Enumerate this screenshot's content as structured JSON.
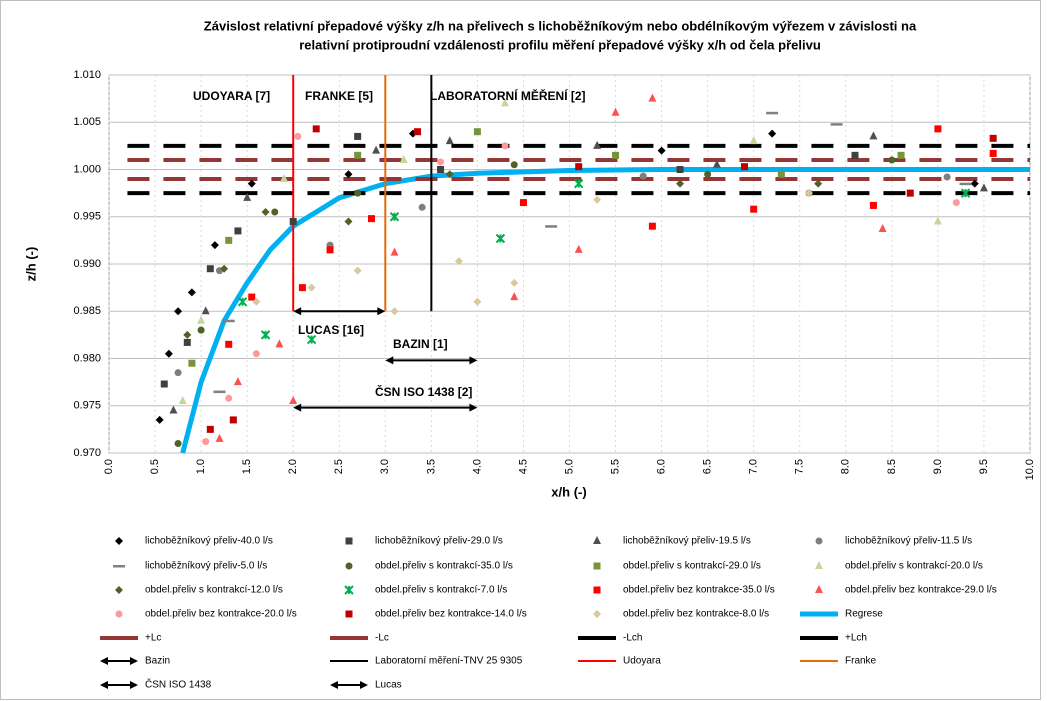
{
  "chart_data": {
    "type": "scatter",
    "title": [
      "Závislost relativní přepadové výšky z/h na přelivech s lichoběžníkovým nebo obdélníkovým výřezem  v závislosti na",
      "relativní protiproudní vzdálenosti profilu měření přepadové výšky x/h od čela přelivu"
    ],
    "x_label": "x/h (-)",
    "y_label": "z/h (-)",
    "xlim": [
      0,
      10
    ],
    "ylim": [
      0.97,
      1.01
    ],
    "grid": true,
    "legend": "bottom",
    "xticks": [
      {
        "value": 0,
        "label": "0.0"
      },
      {
        "value": 0.5,
        "label": "0.5"
      },
      {
        "value": 1,
        "label": "1.0"
      },
      {
        "value": 1.5,
        "label": "1.5"
      },
      {
        "value": 2,
        "label": "2.0"
      },
      {
        "value": 2.5,
        "label": "2.5"
      },
      {
        "value": 3,
        "label": "3.0"
      },
      {
        "value": 3.5,
        "label": "3.5"
      },
      {
        "value": 4,
        "label": "4.0"
      },
      {
        "value": 4.5,
        "label": "4.5"
      },
      {
        "value": 5,
        "label": "5.0"
      },
      {
        "value": 5.5,
        "label": "5.5"
      },
      {
        "value": 6,
        "label": "6.0"
      },
      {
        "value": 6.5,
        "label": "6.5"
      },
      {
        "value": 7,
        "label": "7.0"
      },
      {
        "value": 7.5,
        "label": "7.5"
      },
      {
        "value": 8,
        "label": "8.0"
      },
      {
        "value": 8.5,
        "label": "8.5"
      },
      {
        "value": 9,
        "label": "9.0"
      },
      {
        "value": 9.5,
        "label": "9.5"
      },
      {
        "value": 10,
        "label": "10.0"
      }
    ],
    "yticks": [
      {
        "value": 0.97,
        "label": "0.970"
      },
      {
        "value": 0.975,
        "label": "0.975"
      },
      {
        "value": 0.98,
        "label": "0.980"
      },
      {
        "value": 0.985,
        "label": "0.985"
      },
      {
        "value": 0.99,
        "label": "0.990"
      },
      {
        "value": 0.995,
        "label": "0.995"
      },
      {
        "value": 1,
        "label": "1.000"
      },
      {
        "value": 1.005,
        "label": "1.005"
      },
      {
        "value": 1.01,
        "label": "1.010"
      }
    ],
    "annotations": [
      "UDOYARA [7]",
      "FRANKE [5]",
      "LABORATORNÍ MĚŘENÍ  [2]",
      "LUCAS [16]",
      "BAZIN [1]",
      "ČSN ISO 1438 [2]"
    ],
    "series": [
      {
        "name": "lichoběžníkový přeliv-40.0 l/s",
        "marker": "diamond",
        "color": "#000000",
        "x": [
          0.55,
          0.65,
          0.75,
          0.9,
          1.15,
          1.55,
          2.6,
          3.3,
          6.0,
          7.2,
          9.4
        ],
        "values": [
          0.9735,
          0.9805,
          0.985,
          0.987,
          0.992,
          0.9985,
          0.9995,
          1.0038,
          1.002,
          1.0038,
          0.9985
        ]
      },
      {
        "name": "lichoběžníkový přeliv-29.0 l/s",
        "marker": "square",
        "color": "#404040",
        "x": [
          0.6,
          0.85,
          1.1,
          1.4,
          2.0,
          2.7,
          3.6,
          6.2,
          8.1
        ],
        "values": [
          0.9773,
          0.9817,
          0.9895,
          0.9935,
          0.9945,
          1.0035,
          1.0,
          1.0,
          1.0015
        ]
      },
      {
        "name": "lichoběžníkový přeliv-19.5 l/s",
        "marker": "triangle",
        "color": "#505050",
        "x": [
          0.7,
          1.05,
          1.5,
          2.9,
          3.7,
          5.3,
          6.6,
          8.3,
          9.5
        ],
        "values": [
          0.9745,
          0.985,
          0.997,
          1.002,
          1.003,
          1.0025,
          1.0005,
          1.0035,
          0.998
        ]
      },
      {
        "name": "lichoběžníkový přeliv-11.5 l/s",
        "marker": "circle",
        "color": "#7f7f7f",
        "x": [
          0.75,
          1.2,
          2.4,
          3.4,
          5.8,
          7.6,
          9.1
        ],
        "values": [
          0.9785,
          0.9893,
          0.992,
          0.996,
          0.9993,
          0.9975,
          0.9992
        ]
      },
      {
        "name": "lichoběžníkový přeliv-5.0 l/s",
        "marker": "dash",
        "color": "#808080",
        "x": [
          1.2,
          1.3,
          4.8,
          7.2,
          7.9,
          9.3
        ],
        "values": [
          0.9765,
          0.984,
          0.994,
          1.006,
          1.0048,
          0.9985
        ]
      },
      {
        "name": "obdel.přeliv s kontrakcí-35.0 l/s",
        "marker": "circle",
        "color": "#4f6228",
        "x": [
          0.75,
          1.0,
          1.8,
          2.7,
          4.4,
          6.5,
          8.5
        ],
        "values": [
          0.971,
          0.983,
          0.9955,
          0.9975,
          1.0005,
          0.9995,
          1.001
        ]
      },
      {
        "name": "obdel.přeliv s kontrakcí-29.0 l/s",
        "marker": "square",
        "color": "#77933c",
        "x": [
          0.9,
          1.3,
          2.7,
          4.0,
          5.5,
          7.3,
          8.6
        ],
        "values": [
          0.9795,
          0.9925,
          1.0015,
          1.004,
          1.0015,
          0.9995,
          1.0015
        ]
      },
      {
        "name": "obdel.přeliv s kontrakcí-20.0 l/s",
        "marker": "triangle",
        "color": "#c3d69b",
        "x": [
          0.8,
          1.0,
          1.9,
          3.2,
          4.3,
          7.0,
          9.0
        ],
        "values": [
          0.9755,
          0.984,
          0.999,
          1.001,
          1.007,
          1.003,
          0.9945
        ]
      },
      {
        "name": "obdel.přeliv s kontrakcí-12.0 l/s",
        "marker": "diamond",
        "color": "#4f6228",
        "x": [
          0.85,
          1.25,
          1.7,
          2.6,
          3.7,
          6.2,
          7.7
        ],
        "values": [
          0.9825,
          0.9895,
          0.9955,
          0.9945,
          0.9995,
          0.9985,
          0.9985
        ]
      },
      {
        "name": "obdel.přeliv s kontrakcí-7.0 l/s",
        "marker": "star",
        "color": "#00b050",
        "x": [
          1.45,
          1.7,
          2.2,
          3.1,
          4.25,
          5.1,
          9.3
        ],
        "values": [
          0.986,
          0.9825,
          0.982,
          0.995,
          0.9927,
          0.9985,
          0.9975
        ]
      },
      {
        "name": "obdel.přeliv bez kontrakce-35.0 l/s",
        "marker": "square",
        "color": "#ff0000",
        "x": [
          1.3,
          1.55,
          2.1,
          2.4,
          2.85,
          4.5,
          5.9,
          7.0,
          8.3,
          9.0,
          9.6
        ],
        "values": [
          0.9815,
          0.9865,
          0.9875,
          0.9915,
          0.9948,
          0.9965,
          0.994,
          0.9958,
          0.9962,
          1.0043,
          1.0017
        ]
      },
      {
        "name": "obdel.přeliv bez kontrakce-29.0 l/s",
        "marker": "triangle",
        "color": "#ff5050",
        "x": [
          1.2,
          1.4,
          1.85,
          2.0,
          3.1,
          4.4,
          5.1,
          5.5,
          5.9,
          8.4
        ],
        "values": [
          0.9715,
          0.9775,
          0.9815,
          0.9755,
          0.9912,
          0.9865,
          0.9915,
          1.006,
          1.0075,
          0.9937
        ]
      },
      {
        "name": "obdel.přeliv bez kontrakce-20.0 l/s",
        "marker": "circle",
        "color": "#ff9999",
        "x": [
          1.05,
          1.3,
          1.6,
          2.05,
          3.6,
          4.3,
          9.2
        ],
        "values": [
          0.9712,
          0.9758,
          0.9805,
          1.0035,
          1.0008,
          1.0025,
          0.9965
        ]
      },
      {
        "name": "obdel.přeliv bez kontrakce-14.0 l/s",
        "marker": "square",
        "color": "#c00000",
        "x": [
          1.1,
          1.35,
          2.25,
          3.35,
          5.1,
          6.9,
          8.7,
          9.6
        ],
        "values": [
          0.9725,
          0.9735,
          1.0043,
          1.004,
          1.0003,
          1.0003,
          0.9975,
          1.0033
        ]
      },
      {
        "name": "obdel.přeliv bez kontrakce-8.0 l/s",
        "marker": "diamond",
        "color": "#d8c99b",
        "x": [
          1.6,
          2.2,
          2.7,
          3.1,
          3.8,
          4.0,
          4.4,
          5.3,
          7.6
        ],
        "values": [
          0.986,
          0.9875,
          0.9893,
          0.985,
          0.9903,
          0.986,
          0.988,
          0.9968,
          0.9975
        ]
      },
      {
        "name": "Regrese",
        "line": "solid",
        "width": 5,
        "color": "#00b0f0",
        "x": [
          0.8,
          1,
          1.25,
          1.5,
          1.75,
          2,
          2.5,
          3,
          3.5,
          4,
          5,
          6,
          8,
          10
        ],
        "values": [
          0.97,
          0.9775,
          0.984,
          0.988,
          0.9915,
          0.994,
          0.997,
          0.9985,
          0.9993,
          0.9996,
          0.9999,
          1,
          1,
          1
        ]
      },
      {
        "name": "+Lc",
        "line": "dash",
        "width": 4,
        "color": "#943634",
        "x": [
          0.2,
          10
        ],
        "values": [
          1.001,
          1.001
        ]
      },
      {
        "name": "-Lc",
        "line": "dash",
        "width": 4,
        "color": "#943634",
        "x": [
          0.2,
          10
        ],
        "values": [
          0.999,
          0.999
        ]
      },
      {
        "name": "-Lch",
        "line": "dash",
        "width": 4,
        "color": "#000000",
        "x": [
          0.2,
          10
        ],
        "values": [
          0.9975,
          0.9975
        ]
      },
      {
        "name": "+Lch",
        "line": "dash",
        "width": 4,
        "color": "#000000",
        "x": [
          0.2,
          10
        ],
        "values": [
          1.0025,
          1.0025
        ]
      },
      {
        "name": "Bazin",
        "line": "arrow",
        "width": 2,
        "color": "#000000",
        "x": [
          3,
          4
        ],
        "values": [
          0.9798,
          0.9798
        ]
      },
      {
        "name": "Laboratorní měření-TNV 25 9305",
        "line": "solid",
        "width": 2,
        "color": "#000000",
        "x": [
          3.5,
          3.5
        ],
        "values": [
          0.985,
          1.01
        ]
      },
      {
        "name": "Udoyara",
        "line": "solid",
        "width": 2,
        "color": "#ff0000",
        "x": [
          2,
          2
        ],
        "values": [
          0.985,
          1.01
        ]
      },
      {
        "name": "Franke",
        "line": "solid",
        "width": 2,
        "color": "#e36c09",
        "x": [
          3,
          3
        ],
        "values": [
          0.985,
          1.01
        ]
      },
      {
        "name": "ČSN ISO 1438",
        "line": "arrow",
        "width": 2,
        "color": "#000000",
        "x": [
          2,
          4
        ],
        "values": [
          0.9748,
          0.9748
        ]
      },
      {
        "name": "Lucas",
        "line": "arrow",
        "width": 2,
        "color": "#000000",
        "x": [
          2,
          3
        ],
        "values": [
          0.985,
          0.985
        ]
      }
    ]
  }
}
